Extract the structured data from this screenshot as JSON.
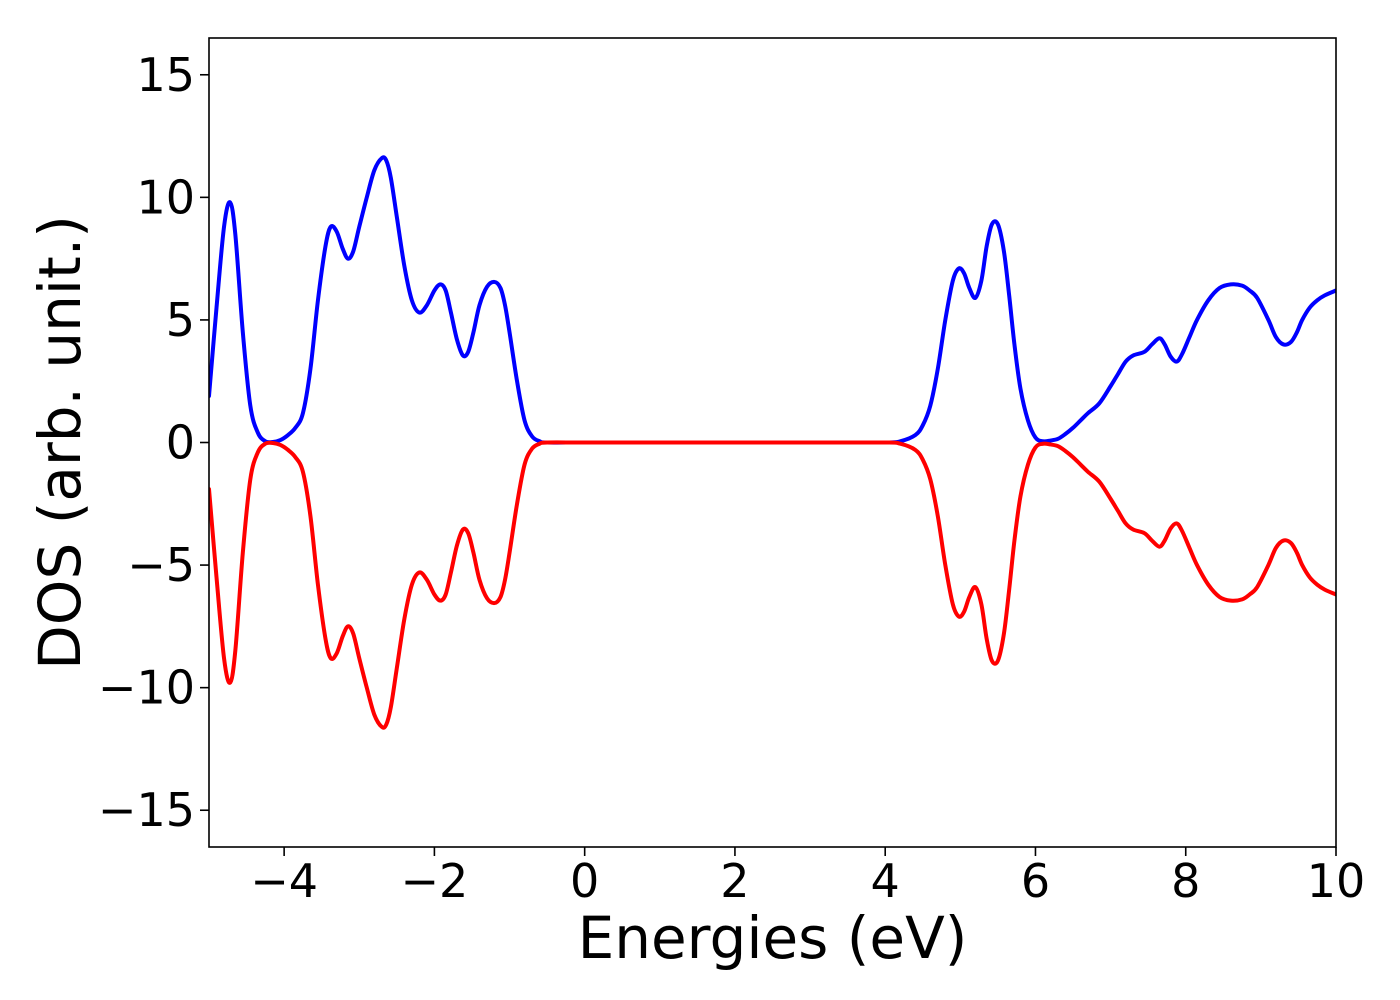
{
  "chart_data": {
    "type": "line",
    "title": "",
    "xlabel": "Energies (eV)",
    "ylabel": "DOS (arb. unit.)",
    "xlim": [
      -5,
      10
    ],
    "ylim": [
      -16.5,
      16.5
    ],
    "xticks": [
      -4,
      -2,
      0,
      2,
      4,
      6,
      8,
      10
    ],
    "yticks": [
      -15,
      -10,
      -5,
      0,
      5,
      10,
      15
    ],
    "xtick_labels": [
      "−4",
      "−2",
      "0",
      "2",
      "4",
      "6",
      "8",
      "10"
    ],
    "ytick_labels": [
      "−15",
      "−10",
      "−5",
      "0",
      "5",
      "10",
      "15"
    ],
    "grid": false,
    "colors": {
      "spin_up": "#0000ff",
      "spin_down": "#ff0000"
    },
    "series": [
      {
        "color": "#0000ff",
        "x": [
          -5.0,
          -4.9,
          -4.8,
          -4.72,
          -4.65,
          -4.55,
          -4.45,
          -4.35,
          -4.25,
          -4.15,
          -4.05,
          -3.95,
          -3.85,
          -3.75,
          -3.65,
          -3.55,
          -3.45,
          -3.38,
          -3.3,
          -3.22,
          -3.15,
          -3.08,
          -3.0,
          -2.9,
          -2.8,
          -2.7,
          -2.64,
          -2.58,
          -2.5,
          -2.4,
          -2.3,
          -2.2,
          -2.1,
          -2.0,
          -1.92,
          -1.85,
          -1.78,
          -1.7,
          -1.62,
          -1.55,
          -1.48,
          -1.4,
          -1.3,
          -1.2,
          -1.12,
          -1.06,
          -1.0,
          -0.9,
          -0.8,
          -0.7,
          -0.6,
          -0.5,
          0.0,
          1.0,
          2.0,
          3.0,
          4.0,
          4.2,
          4.4,
          4.5,
          4.6,
          4.7,
          4.8,
          4.9,
          4.98,
          5.05,
          5.12,
          5.2,
          5.28,
          5.35,
          5.42,
          5.5,
          5.58,
          5.65,
          5.72,
          5.8,
          5.9,
          6.0,
          6.1,
          6.2,
          6.3,
          6.4,
          6.5,
          6.6,
          6.7,
          6.85,
          7.0,
          7.1,
          7.2,
          7.3,
          7.45,
          7.55,
          7.65,
          7.72,
          7.8,
          7.88,
          7.95,
          8.05,
          8.15,
          8.3,
          8.45,
          8.6,
          8.75,
          8.85,
          8.95,
          9.1,
          9.2,
          9.3,
          9.4,
          9.48,
          9.55,
          9.65,
          9.75,
          9.85,
          10.0
        ],
        "y": [
          1.9,
          5.5,
          8.8,
          9.8,
          8.5,
          4.5,
          1.5,
          0.4,
          0.05,
          0.02,
          0.1,
          0.3,
          0.6,
          1.2,
          3.0,
          5.8,
          8.0,
          8.8,
          8.6,
          7.9,
          7.5,
          7.8,
          8.8,
          10.0,
          11.1,
          11.6,
          11.5,
          10.8,
          9.2,
          7.2,
          5.8,
          5.3,
          5.6,
          6.2,
          6.45,
          6.2,
          5.3,
          4.2,
          3.55,
          3.7,
          4.5,
          5.6,
          6.35,
          6.55,
          6.3,
          5.6,
          4.5,
          2.5,
          0.9,
          0.25,
          0.05,
          0.0,
          0.0,
          0.0,
          0.0,
          0.0,
          0.0,
          0.05,
          0.3,
          0.7,
          1.5,
          3.0,
          5.0,
          6.6,
          7.1,
          6.9,
          6.3,
          5.9,
          6.6,
          8.0,
          8.9,
          8.9,
          7.8,
          6.0,
          4.0,
          2.2,
          0.9,
          0.2,
          0.05,
          0.08,
          0.15,
          0.35,
          0.6,
          0.9,
          1.2,
          1.6,
          2.3,
          2.8,
          3.3,
          3.55,
          3.7,
          4.0,
          4.25,
          4.0,
          3.5,
          3.3,
          3.6,
          4.3,
          5.0,
          5.8,
          6.3,
          6.45,
          6.4,
          6.2,
          5.9,
          5.0,
          4.3,
          4.0,
          4.1,
          4.5,
          5.0,
          5.5,
          5.8,
          6.0,
          6.2
        ]
      },
      {
        "color": "#ff0000",
        "x": [
          -5.0,
          -4.9,
          -4.8,
          -4.72,
          -4.65,
          -4.55,
          -4.45,
          -4.35,
          -4.25,
          -4.15,
          -4.05,
          -3.95,
          -3.85,
          -3.75,
          -3.65,
          -3.55,
          -3.45,
          -3.38,
          -3.3,
          -3.22,
          -3.15,
          -3.08,
          -3.0,
          -2.9,
          -2.8,
          -2.7,
          -2.64,
          -2.58,
          -2.5,
          -2.4,
          -2.3,
          -2.2,
          -2.1,
          -2.0,
          -1.92,
          -1.85,
          -1.78,
          -1.7,
          -1.62,
          -1.55,
          -1.48,
          -1.4,
          -1.3,
          -1.2,
          -1.12,
          -1.06,
          -1.0,
          -0.9,
          -0.8,
          -0.7,
          -0.6,
          -0.5,
          0.0,
          1.0,
          2.0,
          3.0,
          4.0,
          4.2,
          4.4,
          4.5,
          4.6,
          4.7,
          4.8,
          4.9,
          4.98,
          5.05,
          5.12,
          5.2,
          5.28,
          5.35,
          5.42,
          5.5,
          5.58,
          5.65,
          5.72,
          5.8,
          5.9,
          6.0,
          6.1,
          6.2,
          6.3,
          6.4,
          6.5,
          6.6,
          6.7,
          6.85,
          7.0,
          7.1,
          7.2,
          7.3,
          7.45,
          7.55,
          7.65,
          7.72,
          7.8,
          7.88,
          7.95,
          8.05,
          8.15,
          8.3,
          8.45,
          8.6,
          8.75,
          8.85,
          8.95,
          9.1,
          9.2,
          9.3,
          9.4,
          9.48,
          9.55,
          9.65,
          9.75,
          9.85,
          10.0
        ],
        "y": [
          -1.9,
          -5.5,
          -8.8,
          -9.8,
          -8.5,
          -4.5,
          -1.5,
          -0.4,
          -0.05,
          -0.02,
          -0.1,
          -0.3,
          -0.6,
          -1.2,
          -3.0,
          -5.8,
          -8.0,
          -8.8,
          -8.6,
          -7.9,
          -7.5,
          -7.8,
          -8.8,
          -10.0,
          -11.1,
          -11.6,
          -11.5,
          -10.8,
          -9.2,
          -7.2,
          -5.8,
          -5.3,
          -5.6,
          -6.2,
          -6.45,
          -6.2,
          -5.3,
          -4.2,
          -3.55,
          -3.7,
          -4.5,
          -5.6,
          -6.35,
          -6.55,
          -6.3,
          -5.6,
          -4.5,
          -2.5,
          -0.9,
          -0.25,
          -0.05,
          0.0,
          0.0,
          0.0,
          0.0,
          0.0,
          0.0,
          -0.05,
          -0.3,
          -0.7,
          -1.5,
          -3.0,
          -5.0,
          -6.6,
          -7.1,
          -6.9,
          -6.3,
          -5.9,
          -6.6,
          -8.0,
          -8.9,
          -8.9,
          -7.8,
          -6.0,
          -4.0,
          -2.2,
          -0.9,
          -0.2,
          -0.05,
          -0.08,
          -0.15,
          -0.35,
          -0.6,
          -0.9,
          -1.2,
          -1.6,
          -2.3,
          -2.8,
          -3.3,
          -3.55,
          -3.7,
          -4.0,
          -4.25,
          -4.0,
          -3.5,
          -3.3,
          -3.6,
          -4.3,
          -5.0,
          -5.8,
          -6.3,
          -6.45,
          -6.4,
          -6.2,
          -5.9,
          -5.0,
          -4.3,
          -4.0,
          -4.1,
          -4.5,
          -5.0,
          -5.5,
          -5.8,
          -6.0,
          -6.2
        ]
      }
    ]
  }
}
